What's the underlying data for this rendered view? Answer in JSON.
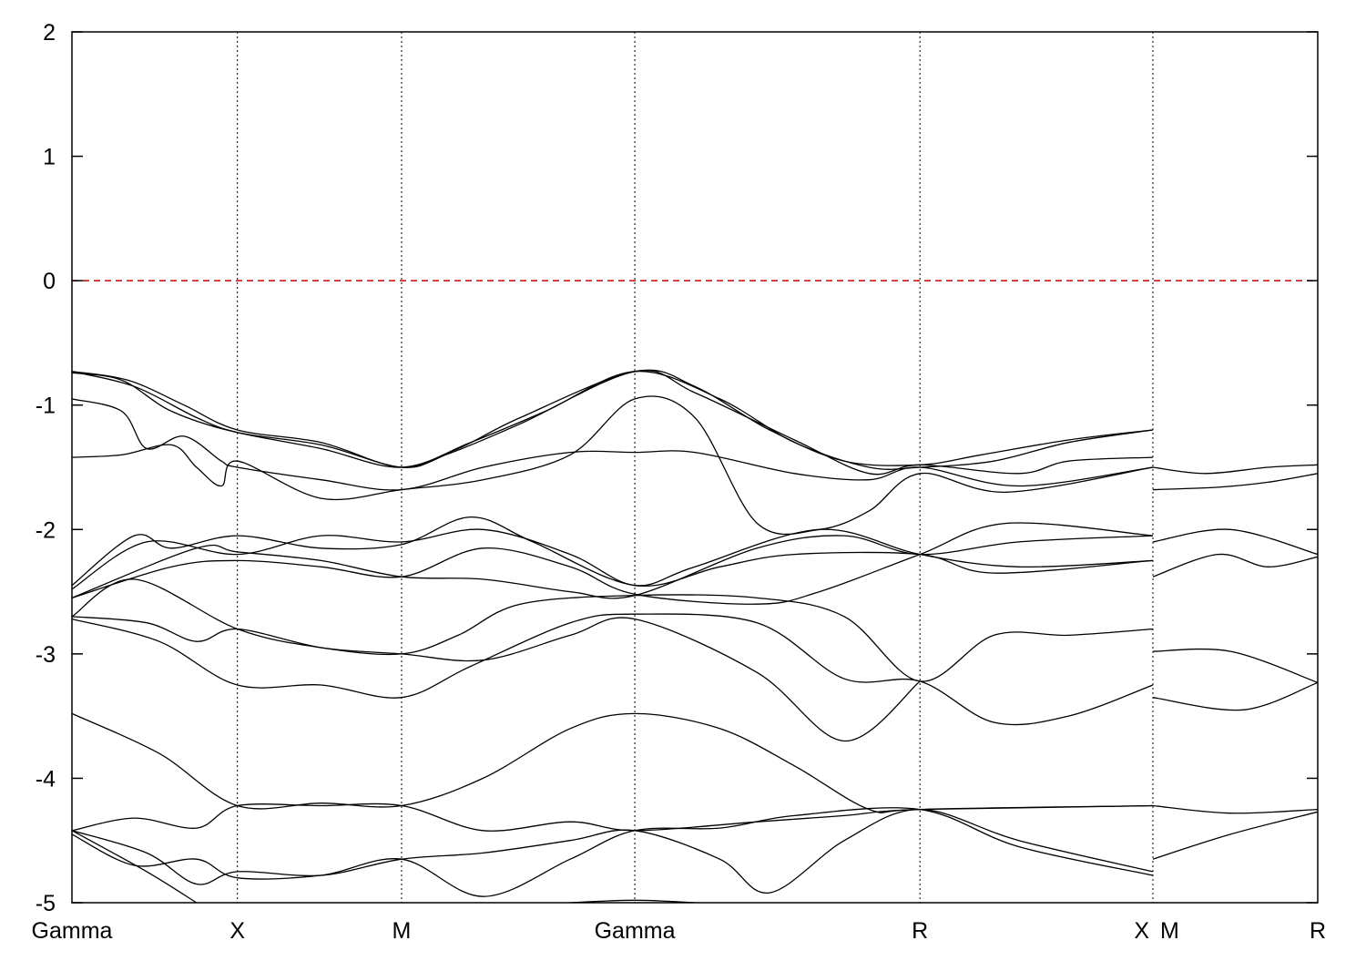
{
  "chart_data": {
    "type": "line",
    "title": "",
    "xlabel": "",
    "ylabel": "",
    "ylim": [
      -5,
      2
    ],
    "xlim": [
      0,
      1
    ],
    "y_ticks": [
      "2",
      "1",
      "0",
      "-1",
      "-2",
      "-3",
      "-4",
      "-5"
    ],
    "y_tick_values": [
      2,
      1,
      0,
      -1,
      -2,
      -3,
      -4,
      -5
    ],
    "k_points": [
      {
        "label": "Gamma",
        "x": 0.0
      },
      {
        "label": "X",
        "x": 0.1328
      },
      {
        "label": "M",
        "x": 0.2646
      },
      {
        "label": "Gamma",
        "x": 0.4518
      },
      {
        "label": "R",
        "x": 0.6807
      },
      {
        "label": "X",
        "x": 0.8677
      },
      {
        "label": "M",
        "x": 0.8677
      },
      {
        "label": "R",
        "x": 1.0
      }
    ],
    "reference_line": {
      "y": 0,
      "style": "dashed",
      "color": "#cc0000"
    },
    "line_color": "#000000",
    "grid": "vertical dashed lines at high-symmetry points",
    "series": [
      {
        "values": [
          [
            0.0,
            -0.73
          ],
          [
            0.045,
            -0.8
          ],
          [
            0.09,
            -1.0
          ],
          [
            0.1328,
            -1.2
          ],
          [
            0.2,
            -1.3
          ],
          [
            0.2646,
            -1.5
          ],
          [
            0.31,
            -1.35
          ],
          [
            0.36,
            -1.1
          ],
          [
            0.4518,
            -0.73
          ],
          [
            0.5,
            -0.85
          ],
          [
            0.56,
            -1.2
          ],
          [
            0.62,
            -1.45
          ],
          [
            0.6807,
            -1.48
          ],
          [
            0.73,
            -1.4
          ],
          [
            0.8,
            -1.28
          ],
          [
            0.8677,
            -1.2
          ]
        ]
      },
      {
        "values": [
          [
            0.0,
            -0.73
          ],
          [
            0.05,
            -0.85
          ],
          [
            0.1,
            -1.1
          ],
          [
            0.1328,
            -1.22
          ],
          [
            0.2,
            -1.35
          ],
          [
            0.2646,
            -1.5
          ],
          [
            0.32,
            -1.3
          ],
          [
            0.38,
            -1.05
          ],
          [
            0.4518,
            -0.73
          ],
          [
            0.52,
            -0.95
          ],
          [
            0.58,
            -1.3
          ],
          [
            0.64,
            -1.5
          ],
          [
            0.6807,
            -1.5
          ],
          [
            0.74,
            -1.45
          ],
          [
            0.8,
            -1.3
          ],
          [
            0.8677,
            -1.2
          ]
        ]
      },
      {
        "values": [
          [
            0.0,
            -0.74
          ],
          [
            0.04,
            -0.8
          ],
          [
            0.08,
            -1.05
          ],
          [
            0.1328,
            -1.22
          ],
          [
            0.2,
            -1.32
          ],
          [
            0.2646,
            -1.5
          ],
          [
            0.3,
            -1.4
          ],
          [
            0.36,
            -1.15
          ],
          [
            0.4518,
            -0.73
          ],
          [
            0.5,
            -0.9
          ],
          [
            0.58,
            -1.28
          ],
          [
            0.64,
            -1.55
          ],
          [
            0.6807,
            -1.48
          ],
          [
            0.76,
            -1.55
          ],
          [
            0.8,
            -1.45
          ],
          [
            0.8677,
            -1.42
          ]
        ]
      },
      {
        "values": [
          [
            0.0,
            -0.95
          ],
          [
            0.04,
            -1.05
          ],
          [
            0.06,
            -1.35
          ],
          [
            0.09,
            -1.25
          ],
          [
            0.12,
            -1.45
          ],
          [
            0.1328,
            -1.5
          ],
          [
            0.2,
            -1.6
          ],
          [
            0.2646,
            -1.68
          ],
          [
            0.33,
            -1.5
          ],
          [
            0.4,
            -1.38
          ],
          [
            0.4518,
            -1.38
          ],
          [
            0.5,
            -1.38
          ],
          [
            0.58,
            -1.55
          ],
          [
            0.64,
            -1.6
          ],
          [
            0.6807,
            -1.5
          ],
          [
            0.76,
            -1.65
          ],
          [
            0.8677,
            -1.5
          ]
        ]
      },
      {
        "values": [
          [
            0.0,
            -1.42
          ],
          [
            0.04,
            -1.4
          ],
          [
            0.08,
            -1.32
          ],
          [
            0.1,
            -1.5
          ],
          [
            0.12,
            -1.65
          ],
          [
            0.1328,
            -1.45
          ],
          [
            0.2,
            -1.75
          ],
          [
            0.2646,
            -1.68
          ],
          [
            0.33,
            -1.6
          ],
          [
            0.4,
            -1.4
          ],
          [
            0.4518,
            -0.95
          ],
          [
            0.5,
            -1.1
          ],
          [
            0.55,
            -1.95
          ],
          [
            0.6,
            -2.0
          ],
          [
            0.64,
            -1.85
          ],
          [
            0.6807,
            -1.55
          ],
          [
            0.75,
            -1.7
          ],
          [
            0.8677,
            -1.5
          ]
        ]
      },
      {
        "values": [
          [
            0.8677,
            -1.5
          ],
          [
            0.91,
            -1.55
          ],
          [
            0.96,
            -1.5
          ],
          [
            1.0,
            -1.48
          ]
        ]
      },
      {
        "values": [
          [
            0.8677,
            -1.68
          ],
          [
            0.92,
            -1.66
          ],
          [
            0.96,
            -1.62
          ],
          [
            1.0,
            -1.55
          ]
        ]
      },
      {
        "values": [
          [
            0.0,
            -2.45
          ],
          [
            0.05,
            -2.05
          ],
          [
            0.08,
            -2.15
          ],
          [
            0.1328,
            -2.05
          ],
          [
            0.2,
            -2.15
          ],
          [
            0.2646,
            -2.12
          ],
          [
            0.32,
            -1.9
          ],
          [
            0.37,
            -2.1
          ],
          [
            0.4518,
            -2.45
          ],
          [
            0.52,
            -2.3
          ],
          [
            0.58,
            -2.2
          ],
          [
            0.6807,
            -2.2
          ],
          [
            0.74,
            -2.35
          ],
          [
            0.8677,
            -2.25
          ]
        ]
      },
      {
        "values": [
          [
            0.0,
            -2.48
          ],
          [
            0.06,
            -2.1
          ],
          [
            0.1328,
            -2.2
          ],
          [
            0.2,
            -2.05
          ],
          [
            0.2646,
            -2.1
          ],
          [
            0.33,
            -2.0
          ],
          [
            0.4,
            -2.2
          ],
          [
            0.4518,
            -2.45
          ],
          [
            0.5,
            -2.3
          ],
          [
            0.6,
            -2.0
          ],
          [
            0.6807,
            -2.2
          ],
          [
            0.76,
            -2.3
          ],
          [
            0.8677,
            -2.25
          ]
        ]
      },
      {
        "values": [
          [
            0.0,
            -2.55
          ],
          [
            0.08,
            -2.3
          ],
          [
            0.1328,
            -2.25
          ],
          [
            0.2,
            -2.3
          ],
          [
            0.2646,
            -2.38
          ],
          [
            0.33,
            -2.15
          ],
          [
            0.4,
            -2.3
          ],
          [
            0.4518,
            -2.52
          ],
          [
            0.55,
            -2.6
          ],
          [
            0.6,
            -2.5
          ],
          [
            0.6807,
            -2.2
          ],
          [
            0.75,
            -1.95
          ],
          [
            0.8677,
            -2.05
          ]
        ]
      },
      {
        "values": [
          [
            0.0,
            -2.55
          ],
          [
            0.1,
            -2.15
          ],
          [
            0.1328,
            -2.18
          ],
          [
            0.2,
            -2.25
          ],
          [
            0.2646,
            -2.38
          ],
          [
            0.33,
            -2.4
          ],
          [
            0.4,
            -2.5
          ],
          [
            0.4518,
            -2.53
          ],
          [
            0.55,
            -2.15
          ],
          [
            0.62,
            -2.05
          ],
          [
            0.6807,
            -2.2
          ],
          [
            0.76,
            -2.1
          ],
          [
            0.8677,
            -2.05
          ]
        ]
      },
      {
        "values": [
          [
            0.8677,
            -2.1
          ],
          [
            0.93,
            -2.0
          ],
          [
            1.0,
            -2.2
          ]
        ]
      },
      {
        "values": [
          [
            0.8677,
            -2.38
          ],
          [
            0.92,
            -2.2
          ],
          [
            0.96,
            -2.3
          ],
          [
            1.0,
            -2.22
          ]
        ]
      },
      {
        "values": [
          [
            0.0,
            -2.7
          ],
          [
            0.06,
            -2.75
          ],
          [
            0.1,
            -2.9
          ],
          [
            0.1328,
            -2.8
          ],
          [
            0.2,
            -2.95
          ],
          [
            0.2646,
            -3.0
          ],
          [
            0.31,
            -2.85
          ],
          [
            0.36,
            -2.6
          ],
          [
            0.4518,
            -2.53
          ],
          [
            0.55,
            -2.55
          ],
          [
            0.62,
            -2.7
          ],
          [
            0.6807,
            -3.22
          ],
          [
            0.74,
            -2.85
          ],
          [
            0.8,
            -2.85
          ],
          [
            0.8677,
            -2.8
          ]
        ]
      },
      {
        "values": [
          [
            0.0,
            -2.72
          ],
          [
            0.07,
            -2.9
          ],
          [
            0.1328,
            -3.25
          ],
          [
            0.2,
            -3.25
          ],
          [
            0.2646,
            -3.35
          ],
          [
            0.32,
            -3.1
          ],
          [
            0.4,
            -2.75
          ],
          [
            0.4518,
            -2.68
          ],
          [
            0.55,
            -2.75
          ],
          [
            0.62,
            -3.2
          ],
          [
            0.6807,
            -3.22
          ],
          [
            0.74,
            -3.55
          ],
          [
            0.8,
            -3.5
          ],
          [
            0.8677,
            -3.25
          ]
        ]
      },
      {
        "values": [
          [
            0.0,
            -2.7
          ],
          [
            0.05,
            -2.4
          ],
          [
            0.1328,
            -2.8
          ],
          [
            0.2,
            -2.95
          ],
          [
            0.2646,
            -3.0
          ],
          [
            0.33,
            -3.05
          ],
          [
            0.4,
            -2.85
          ],
          [
            0.4518,
            -2.72
          ],
          [
            0.55,
            -3.15
          ],
          [
            0.62,
            -3.7
          ],
          [
            0.6807,
            -3.22
          ]
        ]
      },
      {
        "values": [
          [
            0.8677,
            -2.98
          ],
          [
            0.93,
            -2.98
          ],
          [
            1.0,
            -3.23
          ]
        ]
      },
      {
        "values": [
          [
            0.8677,
            -3.35
          ],
          [
            0.94,
            -3.45
          ],
          [
            1.0,
            -3.23
          ]
        ]
      },
      {
        "values": [
          [
            0.0,
            -3.48
          ],
          [
            0.07,
            -3.8
          ],
          [
            0.1328,
            -4.22
          ],
          [
            0.2,
            -4.2
          ],
          [
            0.2646,
            -4.22
          ],
          [
            0.33,
            -4.0
          ],
          [
            0.4,
            -3.6
          ],
          [
            0.4518,
            -3.48
          ],
          [
            0.52,
            -3.6
          ],
          [
            0.58,
            -3.9
          ],
          [
            0.64,
            -4.25
          ],
          [
            0.6807,
            -4.25
          ],
          [
            0.8677,
            -4.22
          ]
        ]
      },
      {
        "values": [
          [
            0.0,
            -4.42
          ],
          [
            0.05,
            -4.32
          ],
          [
            0.1,
            -4.4
          ],
          [
            0.1328,
            -4.22
          ],
          [
            0.2,
            -4.22
          ],
          [
            0.2646,
            -4.22
          ],
          [
            0.33,
            -4.42
          ],
          [
            0.4,
            -4.35
          ],
          [
            0.4518,
            -4.42
          ],
          [
            0.55,
            -4.35
          ],
          [
            0.62,
            -4.3
          ],
          [
            0.6807,
            -4.25
          ],
          [
            0.8677,
            -4.22
          ]
        ]
      },
      {
        "values": [
          [
            0.0,
            -4.42
          ],
          [
            0.06,
            -4.6
          ],
          [
            0.1,
            -4.85
          ],
          [
            0.1328,
            -4.75
          ],
          [
            0.2,
            -4.78
          ],
          [
            0.2646,
            -4.65
          ],
          [
            0.33,
            -4.6
          ],
          [
            0.4,
            -4.5
          ],
          [
            0.4518,
            -4.42
          ],
          [
            0.52,
            -4.65
          ],
          [
            0.56,
            -4.92
          ],
          [
            0.62,
            -4.5
          ],
          [
            0.6807,
            -4.25
          ],
          [
            0.76,
            -4.5
          ],
          [
            0.8677,
            -4.75
          ]
        ]
      },
      {
        "values": [
          [
            0.0,
            -4.45
          ],
          [
            0.05,
            -4.7
          ],
          [
            0.1,
            -4.65
          ],
          [
            0.1328,
            -4.8
          ],
          [
            0.2,
            -4.78
          ],
          [
            0.2646,
            -4.65
          ],
          [
            0.33,
            -4.95
          ],
          [
            0.4,
            -4.65
          ],
          [
            0.4518,
            -4.42
          ],
          [
            0.52,
            -4.4
          ],
          [
            0.58,
            -4.3
          ],
          [
            0.6807,
            -4.25
          ],
          [
            0.76,
            -4.55
          ],
          [
            0.8677,
            -4.78
          ]
        ]
      },
      {
        "values": [
          [
            0.0,
            -4.42
          ],
          [
            0.06,
            -4.75
          ],
          [
            0.1,
            -5.0
          ]
        ]
      },
      {
        "values": [
          [
            0.4,
            -5.0
          ],
          [
            0.4518,
            -4.98
          ],
          [
            0.5,
            -5.0
          ]
        ]
      },
      {
        "values": [
          [
            0.8677,
            -4.22
          ],
          [
            0.93,
            -4.28
          ],
          [
            1.0,
            -4.25
          ]
        ]
      },
      {
        "values": [
          [
            0.8677,
            -4.65
          ],
          [
            0.93,
            -4.45
          ],
          [
            1.0,
            -4.27
          ]
        ]
      }
    ]
  }
}
